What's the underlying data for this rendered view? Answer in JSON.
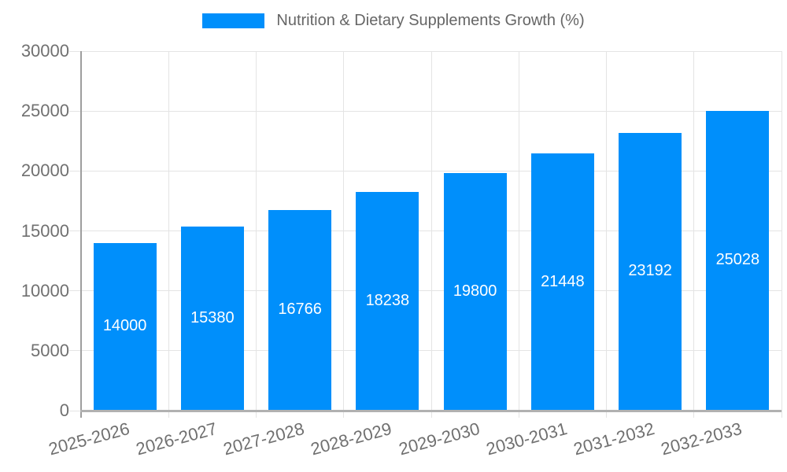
{
  "chart_data": {
    "type": "bar",
    "title": "Nutrition & Dietary Supplements Growth (%)",
    "legend": [
      {
        "label": "Nutrition & Dietary Supplements Growth (%)"
      }
    ],
    "legend_position": "top",
    "categories": [
      "2025-2026",
      "2026-2027",
      "2027-2028",
      "2028-2029",
      "2029-2030",
      "2030-2031",
      "2031-2032",
      "2032-2033"
    ],
    "values": [
      14000,
      15380,
      16766,
      18238,
      19800,
      21448,
      23192,
      25028
    ],
    "bar_labels": [
      "14000",
      "15380",
      "16766",
      "18238",
      "19800",
      "21448",
      "23192",
      "25028"
    ],
    "xlabel": "",
    "ylabel": "",
    "ylim": [
      0,
      30000
    ],
    "ytick_step": 5000,
    "ytick_labels": [
      "0",
      "5000",
      "10000",
      "15000",
      "20000",
      "25000",
      "30000"
    ],
    "grid": true
  },
  "colors": {
    "bar": "#008FFB",
    "grid": "#e4e4e4",
    "axis": "#b1b1b1",
    "y_axis": "#9e9e9e",
    "tick_label": "#707070",
    "legend_text": "#666666",
    "value_label": "#ffffff",
    "background": "#ffffff"
  }
}
